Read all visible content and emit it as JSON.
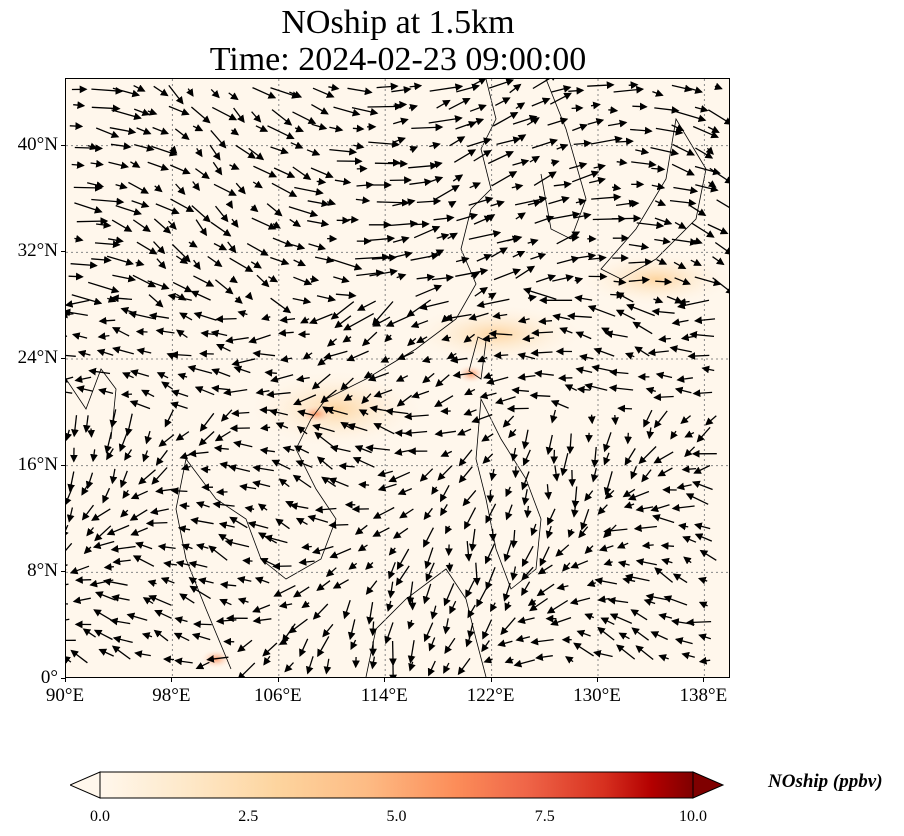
{
  "title": {
    "line1": "NOship at 1.5km",
    "line2": "Time: 2024-02-23 09:00:00"
  },
  "map": {
    "projection": "PlateCarree",
    "extent": {
      "lon": [
        90,
        140
      ],
      "lat": [
        0,
        45
      ]
    },
    "gridlines": "dotted-gray",
    "lat_ticks": [
      "40°N",
      "32°N",
      "24°N",
      "16°N",
      "8°N",
      "0°"
    ],
    "lon_ticks": [
      "90°E",
      "98°E",
      "106°E",
      "114°E",
      "122°E",
      "130°E",
      "138°E"
    ],
    "colormap": "OrRd",
    "vector_field": "wind-arrows-black"
  },
  "colorbar": {
    "label": "NOship (ppbv)",
    "ticks": [
      "0.0",
      "2.5",
      "5.0",
      "7.5",
      "10.0"
    ],
    "range": [
      0,
      10
    ],
    "extend": "both"
  },
  "colors": {
    "background_field": "#fff7ec",
    "low": "#fff7ec",
    "mid": "#fdbb84",
    "high": "#7f0000",
    "arrows": "#000000",
    "coastline": "#000000"
  }
}
